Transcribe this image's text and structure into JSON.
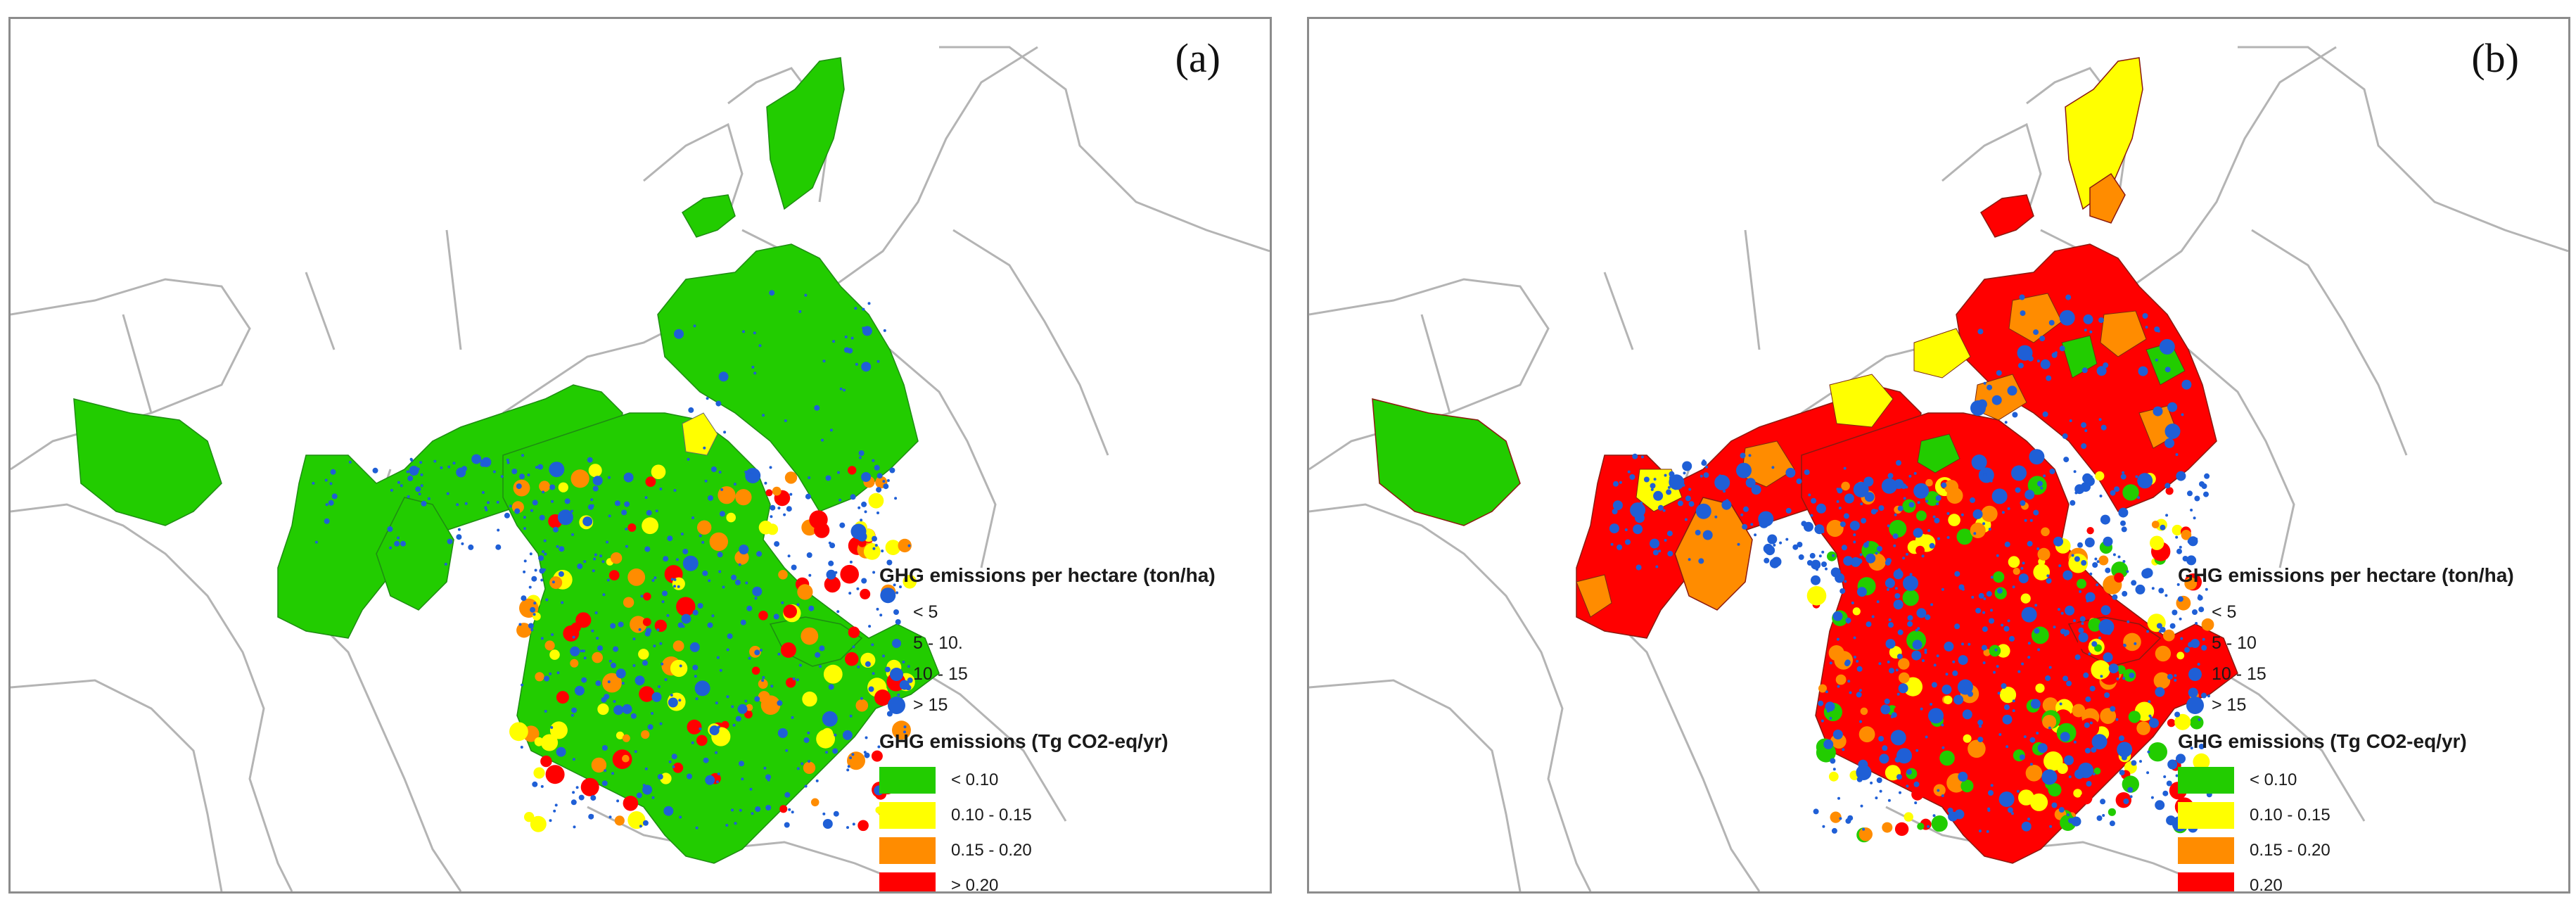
{
  "figure": {
    "panels": [
      {
        "id": "a",
        "label": "(a)",
        "legend": {
          "points_title": "GHG emissions per hectare (ton/ha)",
          "point_classes": [
            "< 5",
            "5 - 10.",
            "10 - 15",
            "> 15"
          ],
          "fill_title": "GHG emissions (Tg CO2-eq/yr)",
          "fill_classes": [
            "< 0.10",
            "0.10 - 0.15",
            "0.15 - 0.20",
            "> 0.20"
          ]
        }
      },
      {
        "id": "b",
        "label": "(b)",
        "legend": {
          "points_title": "GHG emissions per hectare (ton/ha)",
          "point_classes": [
            "< 5",
            "5 - 10",
            "10 - 15",
            "> 15"
          ],
          "fill_title": "GHG emissions (Tg CO2-eq/yr)",
          "fill_classes": [
            "< 0.10",
            "0.10 - 0.15",
            "0.15 - 0.20",
            "0.20"
          ]
        }
      }
    ],
    "colors": {
      "class_lt_0_10": "#22cc00",
      "class_0_10_0_15": "#ffff00",
      "class_0_15_0_20": "#ff8c00",
      "class_gt_0_20": "#ff0000",
      "point": "#1f5fd6",
      "boundary": "#b4b4b4"
    },
    "icons": {
      "point_marker": "blue-circle",
      "panel_a_dominant_class": "< 0.10",
      "panel_b_dominant_class": "> 0.20"
    }
  }
}
